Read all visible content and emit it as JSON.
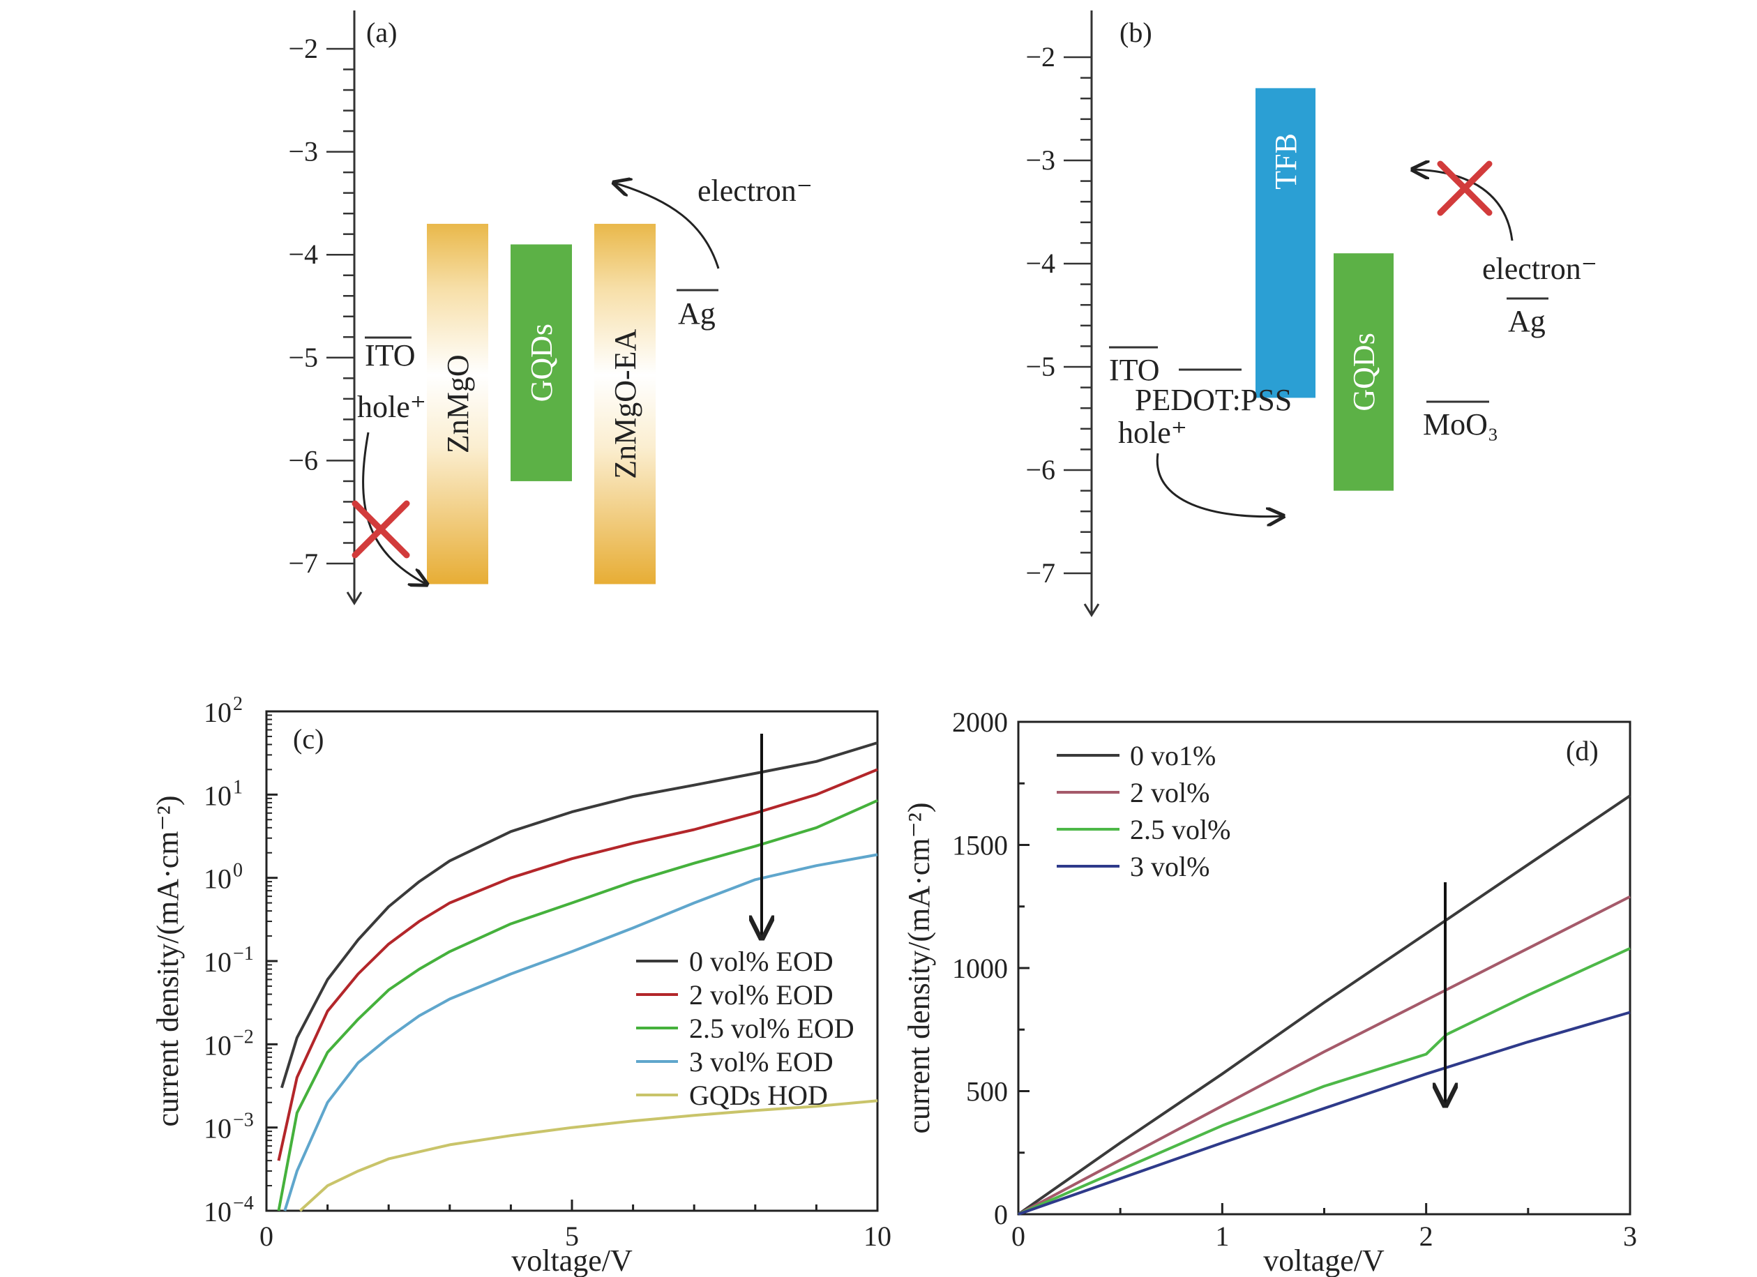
{
  "panel_a": {
    "tag": "(a)",
    "ticks": [
      "−2",
      "−3",
      "−4",
      "−5",
      "−6",
      "−7"
    ],
    "tick_values": [
      -2,
      -3,
      -4,
      -5,
      -6,
      -7
    ],
    "ito_label": "ITO",
    "ito_level": -4.8,
    "hole_label": "hole⁺",
    "electron_label": "electron⁻",
    "ag_label": "Ag",
    "ag_level": -4.3,
    "bands": [
      {
        "label": "ZnMgO",
        "top": -3.7,
        "bottom": -7.2,
        "color": "#e9b84a"
      },
      {
        "label": "GQDs",
        "top": -3.9,
        "bottom": -6.2,
        "color": "#5cb146"
      },
      {
        "label": "ZnMgO-EA",
        "top": -3.7,
        "bottom": -7.2,
        "color": "#e9b84a"
      }
    ]
  },
  "panel_b": {
    "tag": "(b)",
    "ticks": [
      "−2",
      "−3",
      "−4",
      "−5",
      "−6",
      "−7"
    ],
    "tick_values": [
      -2,
      -3,
      -4,
      -5,
      -6,
      -7
    ],
    "ito_label": "ITO",
    "ito_level": -4.8,
    "pedot_label": "PEDOT:PSS",
    "pedot_level": -5.0,
    "hole_label": "hole⁺",
    "electron_label": "electron⁻",
    "ag_label": "Ag",
    "ag_level": -4.3,
    "moo3_label": "MoO₃",
    "moo3_level": -5.3,
    "bands": [
      {
        "label": "TFB",
        "top": -2.3,
        "bottom": -5.3,
        "color": "#2b9fd4"
      },
      {
        "label": "GQDs",
        "top": -3.9,
        "bottom": -6.2,
        "color": "#5cb146"
      }
    ]
  },
  "chart_data": [
    {
      "panel": "(c)",
      "type": "line",
      "xlabel": "voltage/V",
      "ylabel": "current density/(mA·cm⁻²)",
      "xlim": [
        0,
        10
      ],
      "ylim_log10": [
        -4,
        2
      ],
      "yscale": "log",
      "xticks": [
        "0",
        "5",
        "10"
      ],
      "yticks_base": [
        "10",
        "10",
        "10",
        "10",
        "10",
        "10",
        "10"
      ],
      "yticks_exp": [
        "−4",
        "−3",
        "−2",
        "−1",
        "0",
        "1",
        "2"
      ],
      "legend_position": "center-right",
      "series": [
        {
          "name": "0 vol% EOD",
          "color": "#3a3a3a",
          "x": [
            0.25,
            0.5,
            1,
            1.5,
            2,
            2.5,
            3,
            4,
            5,
            6,
            7,
            8,
            9,
            10
          ],
          "y": [
            0.003,
            0.012,
            0.06,
            0.18,
            0.45,
            0.9,
            1.6,
            3.6,
            6.2,
            9.5,
            13,
            18,
            25,
            42
          ]
        },
        {
          "name": "2 vol% EOD",
          "color": "#b3262a",
          "x": [
            0.2,
            0.5,
            1,
            1.5,
            2,
            2.5,
            3,
            4,
            5,
            6,
            7,
            8,
            9,
            10
          ],
          "y": [
            0.0004,
            0.004,
            0.025,
            0.07,
            0.16,
            0.3,
            0.5,
            1.0,
            1.7,
            2.6,
            3.8,
            6.0,
            10,
            20
          ]
        },
        {
          "name": "2.5 vol% EOD",
          "color": "#45b13c",
          "x": [
            0.2,
            0.5,
            1,
            1.5,
            2,
            2.5,
            3,
            4,
            5,
            6,
            7,
            8,
            9,
            10
          ],
          "y": [
            0.0001,
            0.0015,
            0.008,
            0.02,
            0.045,
            0.08,
            0.13,
            0.28,
            0.5,
            0.9,
            1.5,
            2.4,
            4.0,
            8.5
          ]
        },
        {
          "name": "3 vol% EOD",
          "color": "#5fa6cc",
          "x": [
            0.3,
            0.5,
            1,
            1.5,
            2,
            2.5,
            3,
            4,
            5,
            6,
            7,
            8,
            9,
            10
          ],
          "y": [
            0.0001,
            0.0003,
            0.002,
            0.006,
            0.012,
            0.022,
            0.035,
            0.07,
            0.13,
            0.25,
            0.5,
            0.95,
            1.4,
            1.9
          ]
        },
        {
          "name": "GQDs HOD",
          "color": "#c9c46a",
          "x": [
            0.55,
            1,
            1.5,
            2,
            3,
            4,
            5,
            6,
            7,
            8,
            9,
            10
          ],
          "y": [
            0.0001,
            0.0002,
            0.0003,
            0.00042,
            0.00062,
            0.0008,
            0.001,
            0.0012,
            0.0014,
            0.0016,
            0.0018,
            0.0021
          ]
        }
      ]
    },
    {
      "panel": "(d)",
      "type": "line",
      "xlabel": "voltage/V",
      "ylabel": "current density/(mA·cm⁻²)",
      "xlim": [
        0,
        3
      ],
      "ylim": [
        0,
        2000
      ],
      "xticks": [
        "0",
        "1",
        "2",
        "3"
      ],
      "yticks": [
        "0",
        "500",
        "1000",
        "1500",
        "2000"
      ],
      "legend_position": "top-left",
      "series": [
        {
          "name": "0 vo1%",
          "color": "#3a3a3a",
          "x": [
            0,
            0.5,
            1,
            1.5,
            2,
            2.5,
            3
          ],
          "y": [
            0,
            290,
            570,
            860,
            1140,
            1420,
            1700
          ]
        },
        {
          "name": "2 vol%",
          "color": "#a55a6a",
          "x": [
            0,
            0.5,
            1,
            1.5,
            2,
            2.5,
            3
          ],
          "y": [
            0,
            220,
            440,
            660,
            870,
            1080,
            1290
          ]
        },
        {
          "name": "2.5 vol%",
          "color": "#4db848",
          "x": [
            0,
            0.5,
            1,
            1.5,
            2,
            2.1,
            2.5,
            3
          ],
          "y": [
            0,
            180,
            360,
            520,
            650,
            730,
            890,
            1080
          ]
        },
        {
          "name": "3 vol%",
          "color": "#2e3a8a",
          "x": [
            0,
            0.5,
            1,
            1.5,
            2,
            2.5,
            3
          ],
          "y": [
            0,
            145,
            290,
            430,
            570,
            700,
            820
          ]
        }
      ]
    }
  ]
}
